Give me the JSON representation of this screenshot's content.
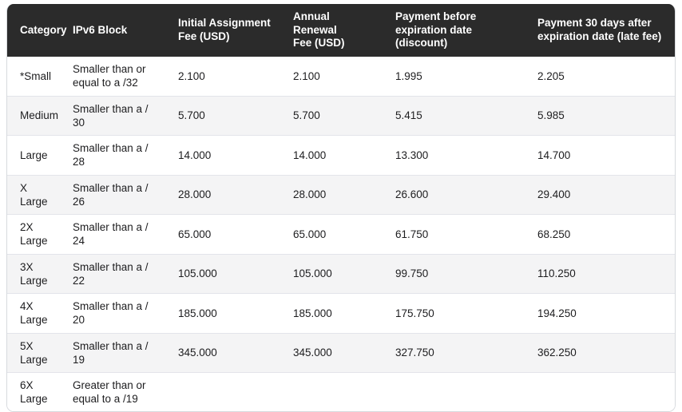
{
  "table": {
    "columns": [
      "Category",
      "IPv6 Block",
      "Initial Assignment\nFee (USD)",
      "Annual Renewal\nFee (USD)",
      "Payment before\nexpiration date\n(discount)",
      "Payment 30 days after\nexpiration date (late fee)"
    ],
    "rows": [
      {
        "category": "*Small",
        "block": "Smaller than or\nequal to a /32",
        "initial": "2.100",
        "renewal": "2.100",
        "before_discount": "1.995",
        "after_late_fee": "2.205"
      },
      {
        "category": "Medium",
        "block": "Smaller than a /\n30",
        "initial": "5.700",
        "renewal": "5.700",
        "before_discount": "5.415",
        "after_late_fee": "5.985"
      },
      {
        "category": "Large",
        "block": "Smaller than a /\n28",
        "initial": "14.000",
        "renewal": "14.000",
        "before_discount": "13.300",
        "after_late_fee": "14.700"
      },
      {
        "category": "X Large",
        "block": "Smaller than a /\n26",
        "initial": "28.000",
        "renewal": "28.000",
        "before_discount": "26.600",
        "after_late_fee": "29.400"
      },
      {
        "category": "2X Large",
        "block": "Smaller than a /\n24",
        "initial": "65.000",
        "renewal": "65.000",
        "before_discount": "61.750",
        "after_late_fee": "68.250"
      },
      {
        "category": "3X Large",
        "block": "Smaller than a /\n22",
        "initial": "105.000",
        "renewal": "105.000",
        "before_discount": "99.750",
        "after_late_fee": "110.250"
      },
      {
        "category": "4X\nLarge",
        "block": "Smaller than a /\n20",
        "initial": "185.000",
        "renewal": "185.000",
        "before_discount": "175.750",
        "after_late_fee": "194.250"
      },
      {
        "category": "5X Large",
        "block": "Smaller than a /\n19",
        "initial": "345.000",
        "renewal": "345.000",
        "before_discount": "327.750",
        "after_late_fee": "362.250"
      },
      {
        "category": "6X Large",
        "block": "Greater than or\nequal to a /19",
        "initial": "",
        "renewal": "",
        "before_discount": "",
        "after_late_fee": ""
      }
    ]
  },
  "colors": {
    "header_bg": "#2b2b2b",
    "header_text": "#ffffff",
    "row_stripe": "#f4f4f5",
    "row_border": "#e3e4ea",
    "outer_border": "#d7dade",
    "body_text": "#1d1d1f"
  }
}
